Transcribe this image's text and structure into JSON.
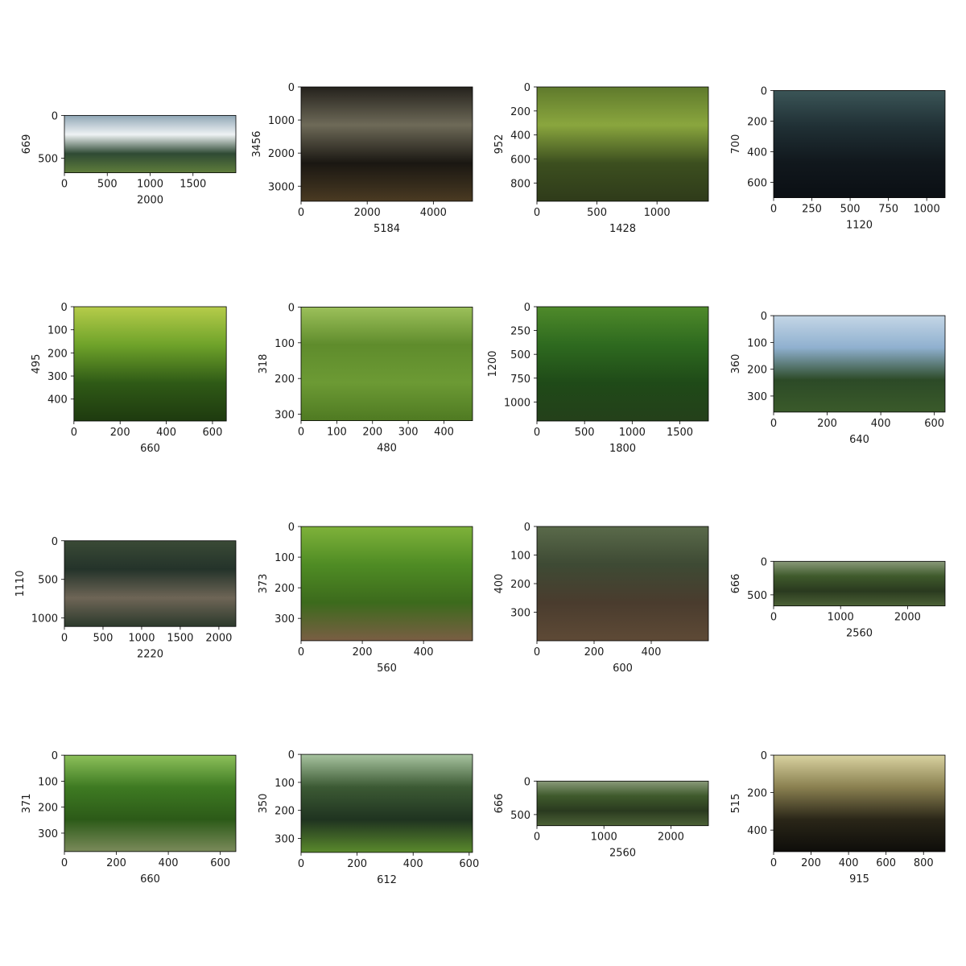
{
  "chart_data": {
    "type": "image-grid",
    "grid": {
      "rows": 4,
      "cols": 4
    },
    "panels": [
      {
        "xlabel": "2000",
        "ylabel": "669",
        "width": 2000,
        "height": 669,
        "xticks": [
          0,
          500,
          1000,
          1500
        ],
        "yticks": [
          0,
          500
        ],
        "colors": [
          "#8fa7b6",
          "#eef2f4",
          "#2f4a34",
          "#5f7d3b"
        ]
      },
      {
        "xlabel": "5184",
        "ylabel": "3456",
        "width": 5184,
        "height": 3456,
        "xticks": [
          0,
          2000,
          4000
        ],
        "yticks": [
          0,
          1000,
          2000,
          3000
        ],
        "colors": [
          "#24211c",
          "#6e6a58",
          "#1a1712",
          "#4a3a22"
        ]
      },
      {
        "xlabel": "1428",
        "ylabel": "952",
        "width": 1428,
        "height": 952,
        "xticks": [
          0,
          500,
          1000
        ],
        "yticks": [
          0,
          200,
          400,
          600,
          800
        ],
        "colors": [
          "#5f7a2c",
          "#8aa63e",
          "#3c4f1f",
          "#2f3b1a"
        ]
      },
      {
        "xlabel": "1120",
        "ylabel": "700",
        "width": 1120,
        "height": 700,
        "xticks": [
          0,
          250,
          500,
          750,
          1000
        ],
        "yticks": [
          0,
          200,
          400,
          600
        ],
        "colors": [
          "#3b5557",
          "#203035",
          "#11181d",
          "#0b0f14"
        ]
      },
      {
        "xlabel": "660",
        "ylabel": "495",
        "width": 660,
        "height": 495,
        "xticks": [
          0,
          200,
          400,
          600
        ],
        "yticks": [
          0,
          100,
          200,
          300,
          400
        ],
        "colors": [
          "#b6cc4a",
          "#6fa32a",
          "#2f5a16",
          "#1e3a0f"
        ]
      },
      {
        "xlabel": "480",
        "ylabel": "318",
        "width": 480,
        "height": 318,
        "xticks": [
          0,
          100,
          200,
          300,
          400
        ],
        "yticks": [
          0,
          100,
          200,
          300
        ],
        "colors": [
          "#9cc05a",
          "#5f8c2c",
          "#6c9a34",
          "#4f7a22"
        ]
      },
      {
        "xlabel": "1800",
        "ylabel": "1200",
        "width": 1800,
        "height": 1200,
        "xticks": [
          0,
          500,
          1000,
          1500
        ],
        "yticks": [
          0,
          250,
          500,
          750,
          1000
        ],
        "colors": [
          "#4f8a2a",
          "#2e6a1f",
          "#1f4a18",
          "#24401a"
        ]
      },
      {
        "xlabel": "640",
        "ylabel": "360",
        "width": 640,
        "height": 360,
        "xticks": [
          0,
          200,
          400,
          600
        ],
        "yticks": [
          0,
          100,
          200,
          300
        ],
        "colors": [
          "#c4d6e6",
          "#8fb0cf",
          "#2c4a27",
          "#3a5a2a"
        ]
      },
      {
        "xlabel": "2220",
        "ylabel": "1110",
        "width": 2220,
        "height": 1110,
        "xticks": [
          0,
          500,
          1000,
          1500,
          2000
        ],
        "yticks": [
          0,
          500,
          1000
        ],
        "colors": [
          "#3a4a36",
          "#24332a",
          "#6e6556",
          "#2c3a2c"
        ]
      },
      {
        "xlabel": "560",
        "ylabel": "373",
        "width": 560,
        "height": 373,
        "xticks": [
          0,
          200,
          400
        ],
        "yticks": [
          0,
          100,
          200,
          300
        ],
        "colors": [
          "#7fb23a",
          "#4f8c24",
          "#3c6a1c",
          "#7a5e44"
        ]
      },
      {
        "xlabel": "600",
        "ylabel": "400",
        "width": 600,
        "height": 400,
        "xticks": [
          0,
          200,
          400
        ],
        "yticks": [
          0,
          100,
          200,
          300
        ],
        "colors": [
          "#5a6a4a",
          "#3e4a34",
          "#4a3c2e",
          "#5e4a36"
        ]
      },
      {
        "xlabel": "2560",
        "ylabel": "666",
        "width": 2560,
        "height": 666,
        "xticks": [
          0,
          1000,
          2000
        ],
        "yticks": [
          0,
          500
        ],
        "colors": [
          "#8a9a7a",
          "#3f5a2c",
          "#2a3a1f",
          "#4c6236"
        ]
      },
      {
        "xlabel": "660",
        "ylabel": "371",
        "width": 660,
        "height": 371,
        "xticks": [
          0,
          200,
          400,
          600
        ],
        "yticks": [
          0,
          100,
          200,
          300
        ],
        "colors": [
          "#8cc05a",
          "#3e7a22",
          "#2c5a18",
          "#7a8a5a"
        ]
      },
      {
        "xlabel": "612",
        "ylabel": "350",
        "width": 612,
        "height": 350,
        "xticks": [
          0,
          200,
          400,
          600
        ],
        "yticks": [
          0,
          100,
          200,
          300
        ],
        "colors": [
          "#a8c4a0",
          "#3c5a34",
          "#1f3320",
          "#5a8a2c"
        ]
      },
      {
        "xlabel": "2560",
        "ylabel": "666",
        "width": 2560,
        "height": 666,
        "xticks": [
          0,
          1000,
          2000
        ],
        "yticks": [
          0,
          500
        ],
        "colors": [
          "#8a9a7a",
          "#3f5a2c",
          "#2a3a1f",
          "#4c6236"
        ]
      },
      {
        "xlabel": "915",
        "ylabel": "515",
        "width": 915,
        "height": 515,
        "xticks": [
          0,
          200,
          400,
          600,
          800
        ],
        "yticks": [
          0,
          200,
          400
        ],
        "colors": [
          "#d8d2a0",
          "#8a8050",
          "#2a2618",
          "#0e0d0a"
        ]
      }
    ]
  }
}
